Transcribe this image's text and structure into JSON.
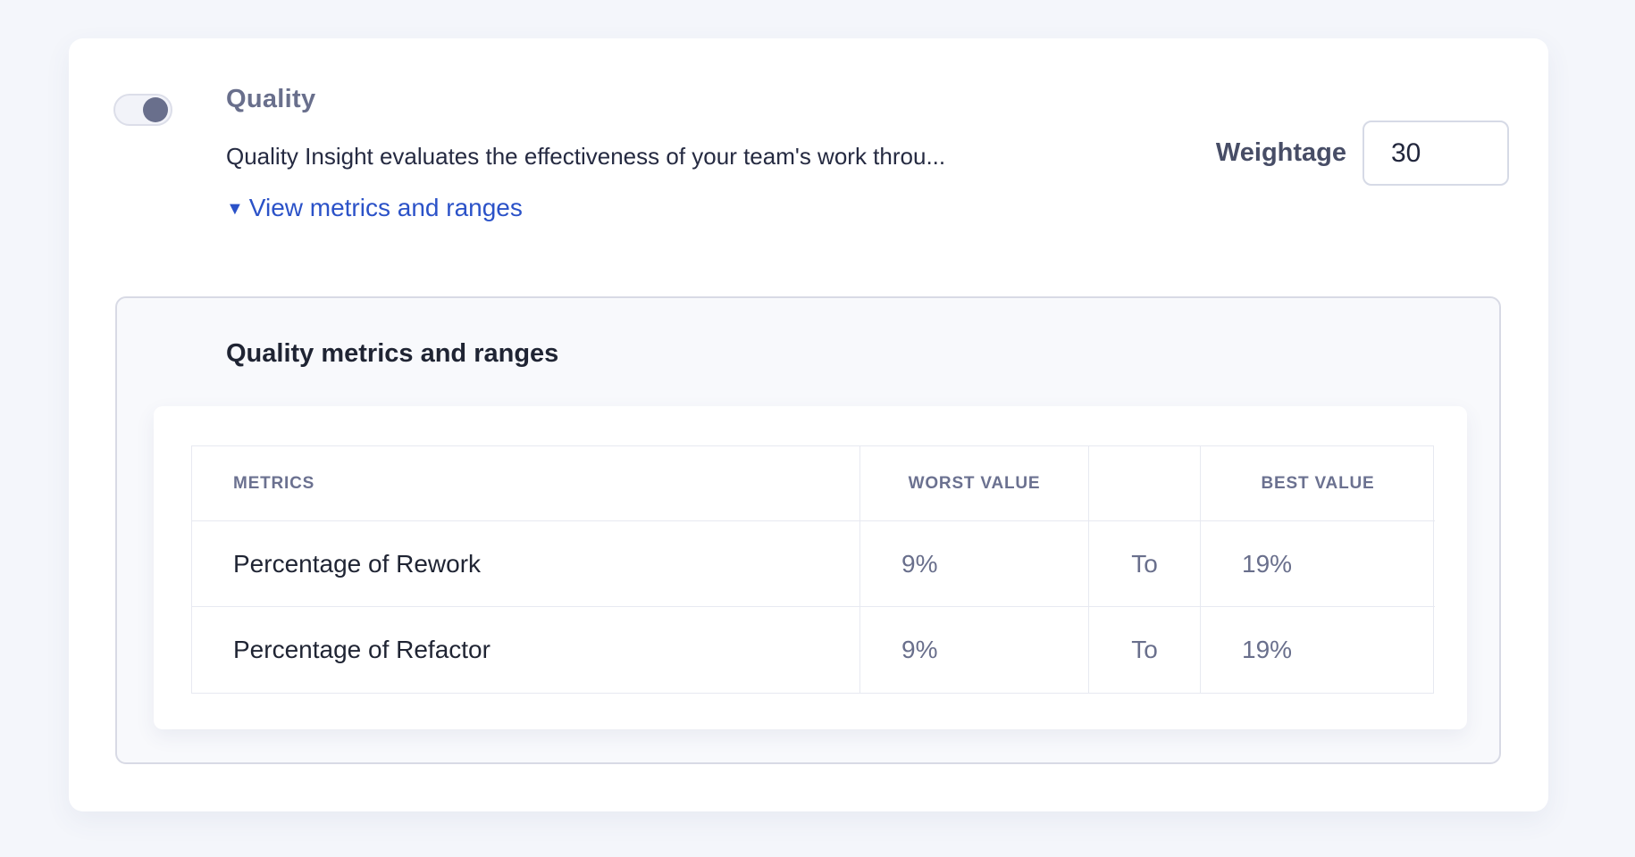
{
  "section": {
    "title": "Quality",
    "description": "Quality Insight evaluates the effectiveness of your team's work throu...",
    "toggle_state": "on",
    "metrics_link": {
      "icon": "▼",
      "label": "View metrics and ranges"
    },
    "weightage": {
      "label": "Weightage",
      "value": "30"
    }
  },
  "metrics_panel": {
    "title": "Quality metrics and ranges",
    "table": {
      "columns": {
        "metrics": "METRICS",
        "worst": "WORST VALUE",
        "spacer": "",
        "best": "BEST VALUE"
      },
      "rows": [
        {
          "metric": "Percentage of Rework",
          "worst": "9%",
          "to": "To",
          "best": "19%"
        },
        {
          "metric": "Percentage of Refactor",
          "worst": "9%",
          "to": "To",
          "best": "19%"
        }
      ]
    }
  },
  "colors": {
    "link_blue": "#2b52c8",
    "slate_text": "#696f8c",
    "dark_text": "#1f2433",
    "panel_border": "#d8dae5",
    "page_bg": "#f4f6fb"
  }
}
